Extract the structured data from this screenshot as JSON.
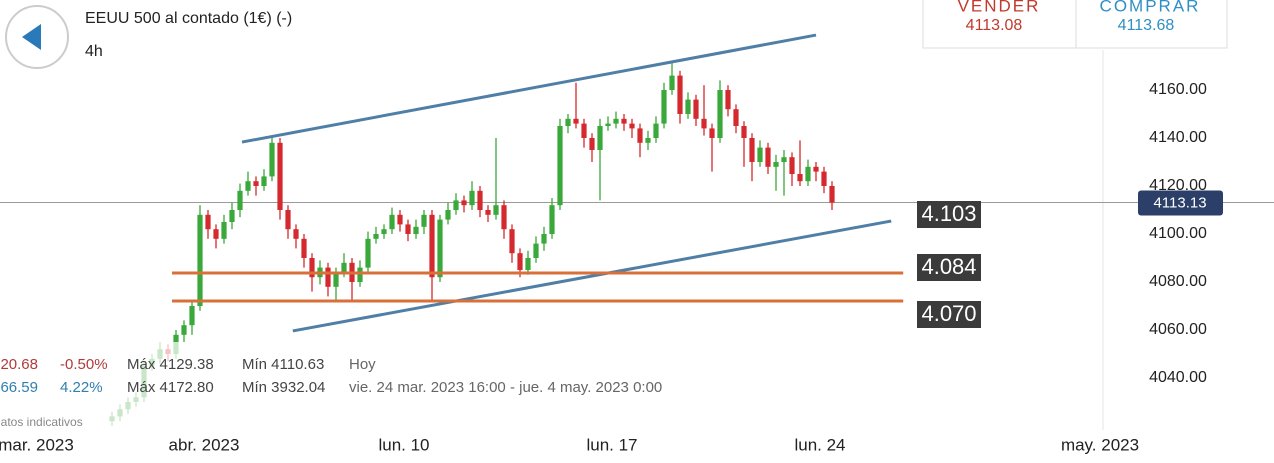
{
  "header": {
    "title": "EEUU 500 al contado (1€) (-)",
    "interval": "4h",
    "sell_label": "VENDER",
    "sell_price": "4113.08",
    "buy_label": "COMPRAR",
    "buy_price": "4113.68"
  },
  "stats": [
    {
      "change": "20.68",
      "pct": "-0.50%",
      "high": "Máx 4129.38",
      "low": "Mín 4110.63",
      "period": "Hoy"
    },
    {
      "change": "66.59",
      "pct": "4.22%",
      "high": "Máx 4172.80",
      "low": "Mín 3932.04",
      "period": "vie. 24 mar. 2023 16:00 - jue. 4 may. 2023 0:00"
    }
  ],
  "footnote": "Datos indicativos",
  "chart_data": {
    "type": "candlestick",
    "up_color": "#3aa83a",
    "down_color": "#d42a2f",
    "xlim": [
      -14,
      145.25
    ],
    "ylim": [
      4020,
      4195
    ],
    "xticks": [
      {
        "value": -9.5,
        "label": "mar. 2023"
      },
      {
        "value": 11.5,
        "label": "abr. 2023"
      },
      {
        "value": 36.5,
        "label": "lun. 10"
      },
      {
        "value": 62.5,
        "label": "lun. 17"
      },
      {
        "value": 88.5,
        "label": "lun. 24"
      },
      {
        "value": 123.5,
        "label": "may. 2023"
      }
    ],
    "yticks": [
      {
        "value": 4040,
        "label": "4040.00"
      },
      {
        "value": 4060,
        "label": "4060.00"
      },
      {
        "value": 4080,
        "label": "4080.00"
      },
      {
        "value": 4100,
        "label": "4100.00"
      },
      {
        "value": 4120,
        "label": "4120.00"
      },
      {
        "value": 4140,
        "label": "4140.00"
      },
      {
        "value": 4160,
        "label": "4160.00"
      }
    ],
    "last_price": 4113.13,
    "series": [
      {
        "ohlc": [
          [
            4022,
            4026,
            4020,
            4024
          ],
          [
            4024,
            4029,
            4022,
            4027
          ],
          [
            4027,
            4032,
            4025,
            4030
          ],
          [
            4030,
            4034,
            4028,
            4032
          ],
          [
            4032,
            4047,
            4030,
            4045
          ],
          [
            4045,
            4050,
            4043,
            4048
          ],
          [
            4048,
            4055,
            4046,
            4052
          ],
          [
            4052,
            4054,
            4047,
            4050
          ],
          [
            4050,
            4060,
            4048,
            4058
          ],
          [
            4058,
            4064,
            4055,
            4062
          ],
          [
            4062,
            4072,
            4058,
            4070
          ],
          [
            4070,
            4112,
            4068,
            4108
          ],
          [
            4108,
            4110,
            4098,
            4102
          ],
          [
            4102,
            4104,
            4094,
            4098
          ],
          [
            4098,
            4108,
            4096,
            4105
          ],
          [
            4105,
            4113,
            4102,
            4110
          ],
          [
            4110,
            4121,
            4107,
            4118
          ],
          [
            4118,
            4126,
            4116,
            4122
          ],
          [
            4122,
            4124,
            4116,
            4120
          ],
          [
            4120,
            4127,
            4118,
            4124
          ],
          [
            4124,
            4141,
            4122,
            4138
          ],
          [
            4138,
            4140,
            4106,
            4110
          ],
          [
            4110,
            4112,
            4098,
            4102
          ],
          [
            4102,
            4104,
            4094,
            4098
          ],
          [
            4098,
            4100,
            4086,
            4090
          ],
          [
            4090,
            4092,
            4076,
            4082
          ],
          [
            4082,
            4089,
            4079,
            4086
          ],
          [
            4086,
            4088,
            4074,
            4078
          ],
          [
            4078,
            4086,
            4072,
            4084
          ],
          [
            4084,
            4092,
            4082,
            4088
          ],
          [
            4088,
            4090,
            4072,
            4080
          ],
          [
            4080,
            4089,
            4078,
            4086
          ],
          [
            4086,
            4101,
            4084,
            4098
          ],
          [
            4098,
            4103,
            4096,
            4100
          ],
          [
            4100,
            4104,
            4098,
            4102
          ],
          [
            4102,
            4111,
            4100,
            4108
          ],
          [
            4108,
            4110,
            4101,
            4104
          ],
          [
            4104,
            4106,
            4097,
            4100
          ],
          [
            4100,
            4106,
            4098,
            4103
          ],
          [
            4103,
            4110,
            4100,
            4108
          ],
          [
            4108,
            4110,
            4072,
            4082
          ],
          [
            4082,
            4108,
            4080,
            4106
          ],
          [
            4106,
            4113,
            4104,
            4110
          ],
          [
            4110,
            4117,
            4108,
            4114
          ],
          [
            4114,
            4116,
            4109,
            4112
          ],
          [
            4112,
            4122,
            4110,
            4118
          ],
          [
            4118,
            4120,
            4107,
            4110
          ],
          [
            4110,
            4112,
            4105,
            4108
          ],
          [
            4108,
            4140,
            4106,
            4112
          ],
          [
            4112,
            4114,
            4098,
            4102
          ],
          [
            4102,
            4104,
            4088,
            4092
          ],
          [
            4092,
            4094,
            4082,
            4085
          ],
          [
            4085,
            4093,
            4083,
            4090
          ],
          [
            4090,
            4099,
            4088,
            4096
          ],
          [
            4096,
            4103,
            4093,
            4100
          ],
          [
            4100,
            4115,
            4098,
            4112
          ],
          [
            4112,
            4148,
            4110,
            4145
          ],
          [
            4145,
            4150,
            4142,
            4148
          ],
          [
            4148,
            4163,
            4144,
            4146
          ],
          [
            4146,
            4148,
            4136,
            4140
          ],
          [
            4140,
            4142,
            4130,
            4135
          ],
          [
            4135,
            4148,
            4114,
            4145
          ],
          [
            4145,
            4149,
            4143,
            4146
          ],
          [
            4146,
            4151,
            4144,
            4148
          ],
          [
            4148,
            4150,
            4143,
            4146
          ],
          [
            4146,
            4148,
            4140,
            4144
          ],
          [
            4144,
            4146,
            4132,
            4138
          ],
          [
            4138,
            4143,
            4135,
            4140
          ],
          [
            4140,
            4149,
            4138,
            4146
          ],
          [
            4146,
            4163,
            4144,
            4160
          ],
          [
            4160,
            4172,
            4158,
            4166
          ],
          [
            4166,
            4168,
            4146,
            4150
          ],
          [
            4150,
            4159,
            4148,
            4156
          ],
          [
            4156,
            4158,
            4145,
            4148
          ],
          [
            4148,
            4162,
            4141,
            4144
          ],
          [
            4144,
            4146,
            4126,
            4140
          ],
          [
            4140,
            4164,
            4138,
            4160
          ],
          [
            4160,
            4162,
            4149,
            4152
          ],
          [
            4152,
            4154,
            4142,
            4145
          ],
          [
            4145,
            4147,
            4128,
            4140
          ],
          [
            4140,
            4142,
            4122,
            4130
          ],
          [
            4130,
            4139,
            4128,
            4136
          ],
          [
            4136,
            4138,
            4125,
            4128
          ],
          [
            4128,
            4133,
            4118,
            4130
          ],
          [
            4130,
            4135,
            4116,
            4132
          ],
          [
            4132,
            4134,
            4120,
            4125
          ],
          [
            4125,
            4139,
            4120,
            4122
          ],
          [
            4122,
            4131,
            4120,
            4128
          ],
          [
            4128,
            4130,
            4122,
            4126
          ],
          [
            4126,
            4128,
            4117,
            4120
          ],
          [
            4120,
            4122,
            4110,
            4113.1
          ]
        ]
      }
    ],
    "lines": [
      {
        "x": [
          16.25,
          88
        ],
        "y": [
          4138.3,
          4182.9
        ],
        "color": "#4f7fa6"
      },
      {
        "x": [
          22.6,
          97.4
        ],
        "y": [
          4059.6,
          4105.4
        ],
        "color": "#4f7fa6"
      },
      {
        "x": [
          7.5,
          98.9
        ],
        "y": [
          4083.75,
          4083.75
        ],
        "color": "#d9703a"
      },
      {
        "x": [
          7.5,
          98.9
        ],
        "y": [
          4072.1,
          4072.1
        ],
        "color": "#d9703a"
      }
    ],
    "tags": [
      "4.103",
      "4.084",
      "4.070"
    ]
  }
}
